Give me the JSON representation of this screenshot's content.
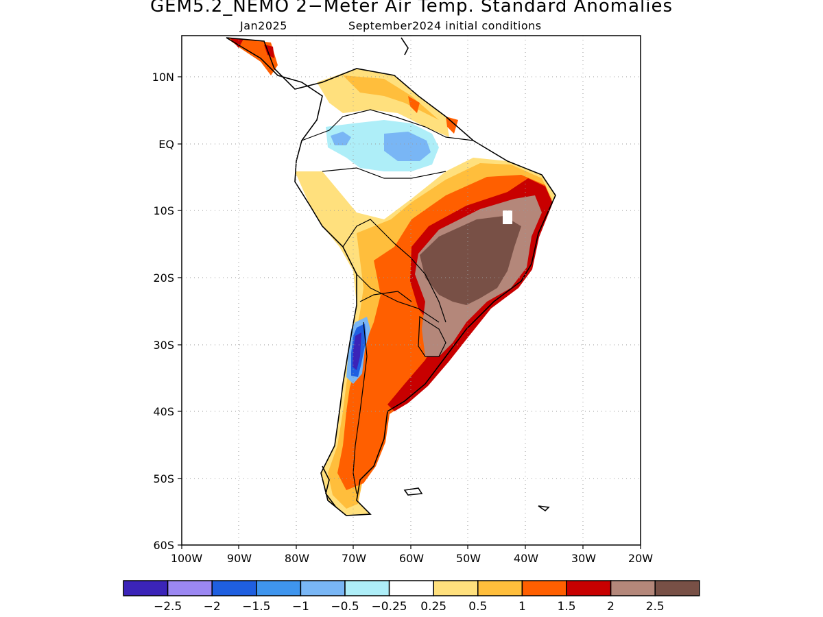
{
  "title": "GEM5.2_NEMO 2−Meter Air Temp. Standard Anomalies",
  "subtitle_left": "Jan2025",
  "subtitle_right": "September2024 initial conditions",
  "map": {
    "lon_range": [
      -100,
      -20
    ],
    "lat_range": [
      -60,
      15
    ],
    "x_ticks": [
      "100W",
      "90W",
      "80W",
      "70W",
      "60W",
      "50W",
      "40W",
      "30W",
      "20W"
    ],
    "y_ticks": [
      "10N",
      "EQ",
      "10S",
      "20S",
      "30S",
      "40S",
      "50S",
      "60S"
    ],
    "gridlines": "dotted"
  },
  "legend": {
    "colors": [
      "#3b24b8",
      "#9b87f2",
      "#1f5fe0",
      "#3f95ee",
      "#79b6f5",
      "#aeeef8",
      "#ffffff",
      "#ffe07d",
      "#ffbe3c",
      "#ff5f00",
      "#c80000",
      "#b4877a",
      "#785046"
    ],
    "labels": [
      "−2.5",
      "−2",
      "−1.5",
      "−1",
      "−0.5",
      "−0.25",
      "0.25",
      "0.5",
      "1",
      "1.5",
      "2",
      "2.5"
    ]
  }
}
